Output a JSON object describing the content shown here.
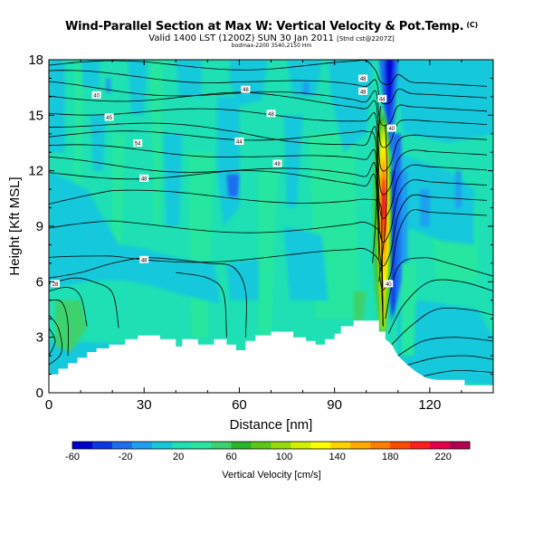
{
  "title": "Wind-Parallel Section at Max W: Vertical Velocity & Pot.Temp.",
  "title_mark": "(C)",
  "subtitle": "Valid 1400 LST (1200Z) SUN 30 Jan 2011",
  "subtitle_note": "[Stnd cst@2207Z]",
  "footer_note": "bodmax-2200 3540,2150 Hm",
  "chart_data": {
    "type": "heatmap",
    "title": "Vertical Velocity & Pot.Temp.",
    "xlabel": "Distance [nm]",
    "ylabel": "Height [Kft MSL]",
    "xlim": [
      0,
      140
    ],
    "ylim": [
      0,
      18
    ],
    "x_ticks": [
      "0",
      "30",
      "60",
      "90",
      "120"
    ],
    "y_ticks": [
      "0",
      "3",
      "6",
      "9",
      "12",
      "15",
      "18"
    ],
    "colorbar": {
      "label": "Vertical Velocity [cm/s]",
      "ticks": [
        "-60",
        "-20",
        "20",
        "60",
        "100",
        "140",
        "180",
        "220"
      ],
      "range": [
        -60,
        240
      ],
      "colors": [
        "#0000cc",
        "#0a37e6",
        "#1e6ef0",
        "#1ea0f0",
        "#14c8dc",
        "#1ee0b4",
        "#28e6a0",
        "#3cd26e",
        "#28b428",
        "#5ac814",
        "#96dc0a",
        "#d2f000",
        "#ffff00",
        "#ffd200",
        "#ffaa00",
        "#ff7d00",
        "#ff4b00",
        "#ff1e1e",
        "#e6004b",
        "#b40050"
      ]
    },
    "terrain_kft": [
      [
        0,
        1.0
      ],
      [
        3,
        1.0
      ],
      [
        3,
        1.3
      ],
      [
        6,
        1.3
      ],
      [
        6,
        1.6
      ],
      [
        9,
        1.6
      ],
      [
        9,
        1.9
      ],
      [
        12,
        1.9
      ],
      [
        12,
        2.2
      ],
      [
        15,
        2.2
      ],
      [
        15,
        2.4
      ],
      [
        19,
        2.4
      ],
      [
        19,
        2.6
      ],
      [
        24,
        2.6
      ],
      [
        24,
        2.9
      ],
      [
        28,
        2.9
      ],
      [
        28,
        3.1
      ],
      [
        35,
        3.1
      ],
      [
        35,
        2.9
      ],
      [
        40,
        2.9
      ],
      [
        40,
        2.5
      ],
      [
        42,
        2.5
      ],
      [
        42,
        2.9
      ],
      [
        47,
        2.9
      ],
      [
        47,
        2.6
      ],
      [
        52,
        2.6
      ],
      [
        52,
        2.9
      ],
      [
        56,
        2.9
      ],
      [
        56,
        2.6
      ],
      [
        59,
        2.6
      ],
      [
        59,
        2.3
      ],
      [
        62,
        2.3
      ],
      [
        62,
        2.8
      ],
      [
        65,
        2.8
      ],
      [
        65,
        3.1
      ],
      [
        70,
        3.1
      ],
      [
        70,
        3.3
      ],
      [
        77,
        3.3
      ],
      [
        77,
        3.0
      ],
      [
        81,
        3.0
      ],
      [
        81,
        2.8
      ],
      [
        84,
        2.8
      ],
      [
        84,
        2.6
      ],
      [
        87,
        2.6
      ],
      [
        87,
        2.9
      ],
      [
        90,
        2.9
      ],
      [
        90,
        3.2
      ],
      [
        92,
        3.2
      ],
      [
        92,
        3.6
      ],
      [
        96,
        3.6
      ],
      [
        96,
        3.9
      ],
      [
        104,
        3.9
      ],
      [
        104,
        3.3
      ],
      [
        106,
        3.3
      ],
      [
        106,
        2.9
      ],
      [
        108,
        2.6
      ],
      [
        110,
        2.0
      ],
      [
        113,
        1.5
      ],
      [
        116,
        1.1
      ],
      [
        119,
        0.8
      ],
      [
        122,
        0.7
      ],
      [
        131,
        0.7
      ],
      [
        131,
        0.4
      ],
      [
        140,
        0.4
      ]
    ],
    "updraft_core": {
      "center_nm": 105.5,
      "peak_cm_s": 220,
      "height_range_kft": [
        3.5,
        15.5
      ]
    },
    "downdraft_core": {
      "center_nm": 107.0,
      "min_cm_s": -60,
      "height_range_kft": [
        13,
        18
      ]
    },
    "isentrope_labels": [
      {
        "text": "40",
        "x": 15,
        "y": 16.1
      },
      {
        "text": "45",
        "x": 19,
        "y": 14.9
      },
      {
        "text": "54",
        "x": 28,
        "y": 13.5
      },
      {
        "text": "48",
        "x": 30,
        "y": 11.6
      },
      {
        "text": "48",
        "x": 62,
        "y": 16.4
      },
      {
        "text": "48",
        "x": 70,
        "y": 15.1
      },
      {
        "text": "44",
        "x": 60,
        "y": 13.6
      },
      {
        "text": "48",
        "x": 72,
        "y": 12.4
      },
      {
        "text": "48",
        "x": 30,
        "y": 7.2
      },
      {
        "text": "28",
        "x": 2,
        "y": 5.9
      },
      {
        "text": "48",
        "x": 99,
        "y": 17.0
      },
      {
        "text": "48",
        "x": 99,
        "y": 16.3
      },
      {
        "text": "44",
        "x": 105,
        "y": 15.9
      },
      {
        "text": "40",
        "x": 108,
        "y": 14.3
      },
      {
        "text": "40",
        "x": 107,
        "y": 5.9
      }
    ]
  }
}
